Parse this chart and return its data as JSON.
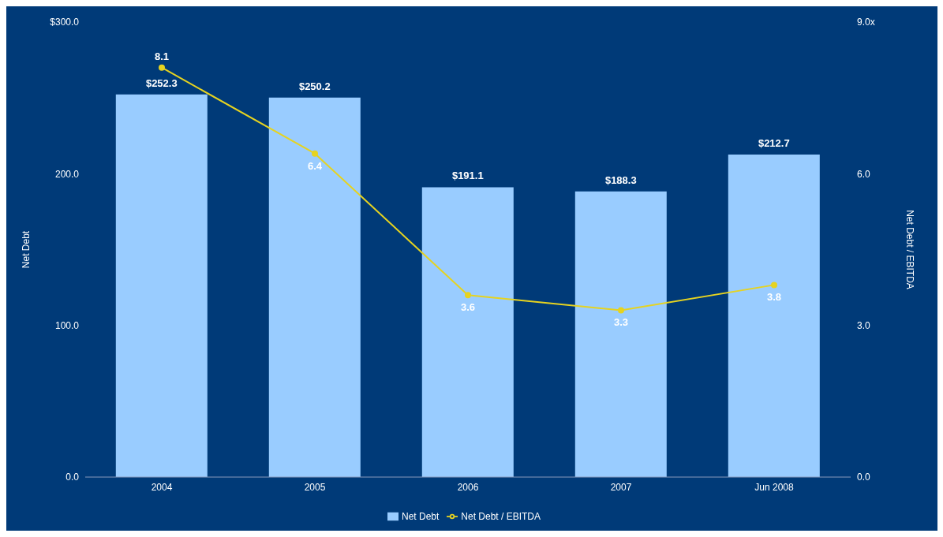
{
  "chart_data": {
    "type": "bar",
    "categories": [
      "2004",
      "2005",
      "2006",
      "2007",
      "Jun 2008"
    ],
    "series": [
      {
        "name": "Net Debt",
        "color": "#99ccff",
        "values": [
          252.3,
          250.2,
          191.1,
          188.3,
          212.7
        ],
        "value_labels": [
          "$252.3",
          "$250.2",
          "$191.1",
          "$188.3",
          "$212.7"
        ]
      },
      {
        "name": "Net Debt / EBITDA",
        "type": "line",
        "axis": "y2",
        "color": "#e6d320",
        "marker": "circle",
        "values": [
          8.1,
          6.4,
          3.6,
          3.3,
          3.8
        ],
        "value_labels": [
          "8.1",
          "6.4",
          "3.6",
          "3.3",
          "3.8"
        ]
      }
    ],
    "ylabel": "Net Debt",
    "y2label": "Net Debt / EBITDA",
    "ylim": [
      0,
      300
    ],
    "yticks": [
      {
        "value": 0,
        "label": "0.0"
      },
      {
        "value": 100,
        "label": "100.0"
      },
      {
        "value": 200,
        "label": "200.0"
      },
      {
        "value": 300,
        "label": "$300.0"
      }
    ],
    "y2lim": [
      0,
      9
    ],
    "y2ticks": [
      {
        "value": 0,
        "label": "0.0"
      },
      {
        "value": 3,
        "label": "3.0"
      },
      {
        "value": 6,
        "label": "6.0"
      },
      {
        "value": 9,
        "label": "9.0x"
      }
    ],
    "grid": false,
    "legend": "bottom"
  }
}
